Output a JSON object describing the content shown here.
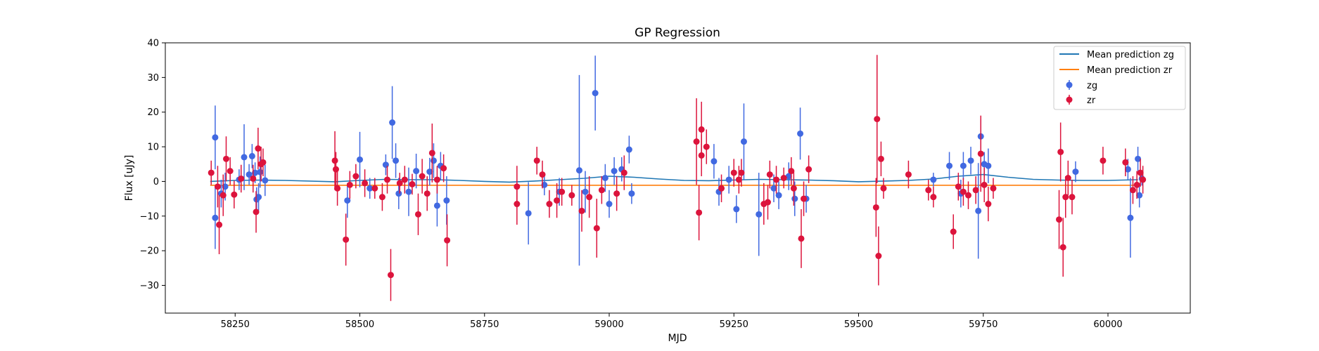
{
  "colors": {
    "mean_zg": "#1f77b4",
    "mean_zr": "#ff7f0e",
    "zg": "#4169e1",
    "zr": "#dc143c"
  },
  "chart_data": {
    "type": "scatter",
    "title": "GP Regression",
    "xlabel": "MJD",
    "ylabel": "Flux [uJy]",
    "xlim": [
      58110,
      60165
    ],
    "ylim": [
      -38,
      40
    ],
    "xticks": [
      58250,
      58500,
      58750,
      59000,
      59250,
      59500,
      59750,
      60000
    ],
    "yticks": [
      -30,
      -20,
      -10,
      0,
      10,
      20,
      30,
      40
    ],
    "x_tick_labels": [
      "58250",
      "58500",
      "58750",
      "59000",
      "59250",
      "59500",
      "59750",
      "60000"
    ],
    "y_tick_labels": [
      "−30",
      "−20",
      "−10",
      "0",
      "10",
      "20",
      "30",
      "40"
    ],
    "grid": false,
    "legend_position": "top-right",
    "legend": [
      {
        "label": "Mean prediction zg",
        "kind": "line",
        "color_key": "mean_zg"
      },
      {
        "label": "Mean prediction zr",
        "kind": "line",
        "color_key": "mean_zr"
      },
      {
        "label": "zg",
        "kind": "errorbar",
        "color_key": "zg"
      },
      {
        "label": "zr",
        "kind": "errorbar",
        "color_key": "zr"
      }
    ],
    "lines": [
      {
        "name": "Mean prediction zg",
        "color_key": "mean_zg",
        "x": [
          58200,
          58250,
          58300,
          58350,
          58450,
          58500,
          58550,
          58600,
          58650,
          58700,
          58750,
          58800,
          58850,
          58900,
          58950,
          59000,
          59050,
          59100,
          59150,
          59200,
          59250,
          59300,
          59350,
          59400,
          59450,
          59500,
          59550,
          59600,
          59650,
          59700,
          59750,
          59800,
          59850,
          59900,
          59950,
          60000,
          60060
        ],
        "y": [
          0.0,
          0.3,
          0.4,
          0.3,
          -0.1,
          0.3,
          0.6,
          0.5,
          0.5,
          0.3,
          0.0,
          -0.2,
          0.1,
          0.5,
          0.9,
          1.5,
          1.2,
          0.7,
          0.3,
          0.2,
          0.4,
          0.6,
          0.5,
          0.4,
          0.2,
          -0.1,
          0.1,
          0.3,
          0.7,
          1.5,
          2.0,
          1.2,
          0.6,
          0.4,
          0.3,
          0.3,
          0.5
        ]
      },
      {
        "name": "Mean prediction zr",
        "color_key": "mean_zr",
        "x": [
          58200,
          60060
        ],
        "y": [
          -1.1,
          -1.1
        ]
      }
    ],
    "series": [
      {
        "name": "zg",
        "color_key": "zg",
        "points": [
          [
            58210,
            12.7,
            9.2
          ],
          [
            58210,
            -10.5,
            9
          ],
          [
            58222,
            -3.5,
            4
          ],
          [
            58230,
            -1.5,
            4
          ],
          [
            58258,
            0.5,
            3
          ],
          [
            58268,
            7.0,
            9.5
          ],
          [
            58278,
            2.0,
            3
          ],
          [
            58284,
            7.3,
            3.5
          ],
          [
            58290,
            2.5,
            3
          ],
          [
            58293,
            -5.2,
            3.5
          ],
          [
            58297,
            -4.5,
            4
          ],
          [
            58300,
            2.7,
            4.5
          ],
          [
            58310,
            0.3,
            4.5
          ],
          [
            58475,
            -5.5,
            5
          ],
          [
            58500,
            6.3,
            8
          ],
          [
            58520,
            -2.0,
            3
          ],
          [
            58552,
            4.8,
            3
          ],
          [
            58565,
            17.0,
            10.5
          ],
          [
            58572,
            6.0,
            5
          ],
          [
            58578,
            -3.5,
            4.5
          ],
          [
            58598,
            -3.0,
            7
          ],
          [
            58613,
            3.0,
            5
          ],
          [
            58640,
            2.8,
            4
          ],
          [
            58648,
            6.0,
            5
          ],
          [
            58655,
            -7.0,
            6
          ],
          [
            58662,
            4.5,
            4
          ],
          [
            58674,
            -5.5,
            7
          ],
          [
            58838,
            -9.2,
            9
          ],
          [
            58870,
            -1.0,
            3
          ],
          [
            58900,
            -3.0,
            4
          ],
          [
            58940,
            3.2,
            27.5
          ],
          [
            58972,
            25.5,
            10.8
          ],
          [
            58952,
            -3.0,
            6
          ],
          [
            58992,
            1.0,
            4
          ],
          [
            59000,
            -6.5,
            4
          ],
          [
            59010,
            3.0,
            4
          ],
          [
            59025,
            3.5,
            3.5
          ],
          [
            59040,
            9.2,
            4
          ],
          [
            59045,
            -3.5,
            3
          ],
          [
            59210,
            5.8,
            5
          ],
          [
            59220,
            -3.0,
            4
          ],
          [
            59240,
            0.5,
            4
          ],
          [
            59255,
            -8.0,
            4
          ],
          [
            59270,
            11.5,
            11
          ],
          [
            59300,
            -9.5,
            12
          ],
          [
            59330,
            -2.0,
            4
          ],
          [
            59340,
            -4.0,
            4
          ],
          [
            59360,
            1.5,
            4
          ],
          [
            59372,
            -5.0,
            5
          ],
          [
            59383,
            13.8,
            7.5
          ],
          [
            59395,
            -5.0,
            4
          ],
          [
            59650,
            0.5,
            2
          ],
          [
            59682,
            4.5,
            4
          ],
          [
            59705,
            -3.5,
            4
          ],
          [
            59710,
            4.5,
            4
          ],
          [
            59725,
            6.0,
            4
          ],
          [
            59740,
            -8.5,
            13.8
          ],
          [
            59745,
            13.0,
            5
          ],
          [
            59752,
            5.0,
            3.5
          ],
          [
            59760,
            4.5,
            5
          ],
          [
            59935,
            2.8,
            3
          ],
          [
            60040,
            3.5,
            3
          ],
          [
            60045,
            -10.5,
            11.5
          ],
          [
            60060,
            6.5,
            3.5
          ],
          [
            60063,
            -4.0,
            3.5
          ],
          [
            60068,
            0.8,
            2
          ]
        ]
      },
      {
        "name": "zr",
        "color_key": "zr",
        "points": [
          [
            58202,
            2.5,
            3.5
          ],
          [
            58215,
            -1.5,
            6
          ],
          [
            58218,
            -12.5,
            8.5
          ],
          [
            58226,
            -4.0,
            6
          ],
          [
            58232,
            6.5,
            6.5
          ],
          [
            58240,
            3.0,
            4
          ],
          [
            58248,
            -3.8,
            4
          ],
          [
            58262,
            0.8,
            4
          ],
          [
            58286,
            0.8,
            4
          ],
          [
            58292,
            -8.8,
            6
          ],
          [
            58296,
            9.5,
            6
          ],
          [
            58302,
            5.0,
            5
          ],
          [
            58306,
            5.5,
            4
          ],
          [
            58450,
            6.0,
            8.5
          ],
          [
            58455,
            -2.0,
            5
          ],
          [
            58452,
            3.5,
            5
          ],
          [
            58472,
            -16.8,
            7.5
          ],
          [
            58480,
            -1.0,
            4
          ],
          [
            58492,
            1.5,
            3.5
          ],
          [
            58510,
            -0.5,
            4
          ],
          [
            58530,
            -2.0,
            3
          ],
          [
            58545,
            -4.5,
            4
          ],
          [
            58555,
            0.5,
            4
          ],
          [
            58562,
            -27.0,
            7.5
          ],
          [
            58580,
            -0.5,
            3
          ],
          [
            58590,
            0.5,
            4
          ],
          [
            58605,
            -0.8,
            3
          ],
          [
            58617,
            -9.5,
            6
          ],
          [
            58625,
            1.5,
            5
          ],
          [
            58635,
            -3.5,
            5
          ],
          [
            58645,
            8.2,
            8.5
          ],
          [
            58655,
            0.5,
            4
          ],
          [
            58668,
            3.8,
            4
          ],
          [
            58675,
            -17.0,
            7.5
          ],
          [
            58815,
            -6.5,
            6
          ],
          [
            58815,
            -1.5,
            6
          ],
          [
            58855,
            6.0,
            4
          ],
          [
            58866,
            2.0,
            4
          ],
          [
            58880,
            -6.5,
            4
          ],
          [
            58895,
            -5.5,
            5
          ],
          [
            58905,
            -3.0,
            4
          ],
          [
            58925,
            -4.0,
            3
          ],
          [
            58945,
            -8.5,
            6
          ],
          [
            58960,
            -4.5,
            6
          ],
          [
            58975,
            -13.5,
            8.5
          ],
          [
            58985,
            -2.5,
            4
          ],
          [
            59015,
            -3.5,
            5
          ],
          [
            59030,
            2.5,
            5
          ],
          [
            59175,
            11.5,
            12.5
          ],
          [
            59180,
            -9.0,
            8
          ],
          [
            59185,
            15.0,
            8
          ],
          [
            59185,
            7.5,
            6
          ],
          [
            59195,
            10.0,
            5
          ],
          [
            59225,
            -2.0,
            4
          ],
          [
            59250,
            2.5,
            4
          ],
          [
            59260,
            0.5,
            4
          ],
          [
            59265,
            2.5,
            4
          ],
          [
            59310,
            -6.5,
            6
          ],
          [
            59318,
            -6.0,
            5
          ],
          [
            59322,
            2.0,
            4
          ],
          [
            59335,
            0.5,
            4
          ],
          [
            59350,
            1.0,
            3
          ],
          [
            59365,
            3.0,
            4
          ],
          [
            59370,
            -2.0,
            5
          ],
          [
            59385,
            -16.5,
            8.5
          ],
          [
            59390,
            -5.0,
            5
          ],
          [
            59400,
            3.5,
            4
          ],
          [
            59535,
            -7.5,
            8.5
          ],
          [
            59537,
            18.0,
            18.5
          ],
          [
            59540,
            -21.5,
            8.5
          ],
          [
            59545,
            6.5,
            5
          ],
          [
            59550,
            -2.0,
            3
          ],
          [
            59600,
            2.0,
            4
          ],
          [
            59640,
            -2.5,
            3
          ],
          [
            59650,
            -4.5,
            3
          ],
          [
            59690,
            -14.5,
            5
          ],
          [
            59700,
            -1.5,
            4
          ],
          [
            59710,
            -3.0,
            4
          ],
          [
            59720,
            -4.0,
            4
          ],
          [
            59735,
            -2.5,
            4
          ],
          [
            59745,
            8.0,
            11
          ],
          [
            59752,
            -1.0,
            5
          ],
          [
            59760,
            -6.5,
            5
          ],
          [
            59770,
            -2.0,
            3
          ],
          [
            59902,
            -11.0,
            8.5
          ],
          [
            59905,
            8.5,
            8.5
          ],
          [
            59910,
            -19.0,
            8.5
          ],
          [
            59915,
            -4.5,
            6
          ],
          [
            59920,
            1.0,
            5
          ],
          [
            59928,
            -4.5,
            5
          ],
          [
            59990,
            6.0,
            4
          ],
          [
            60035,
            5.5,
            4
          ],
          [
            60050,
            -2.5,
            4
          ],
          [
            60058,
            -1.0,
            4
          ],
          [
            60065,
            2.5,
            4
          ],
          [
            60070,
            0.5,
            4
          ]
        ]
      }
    ]
  }
}
